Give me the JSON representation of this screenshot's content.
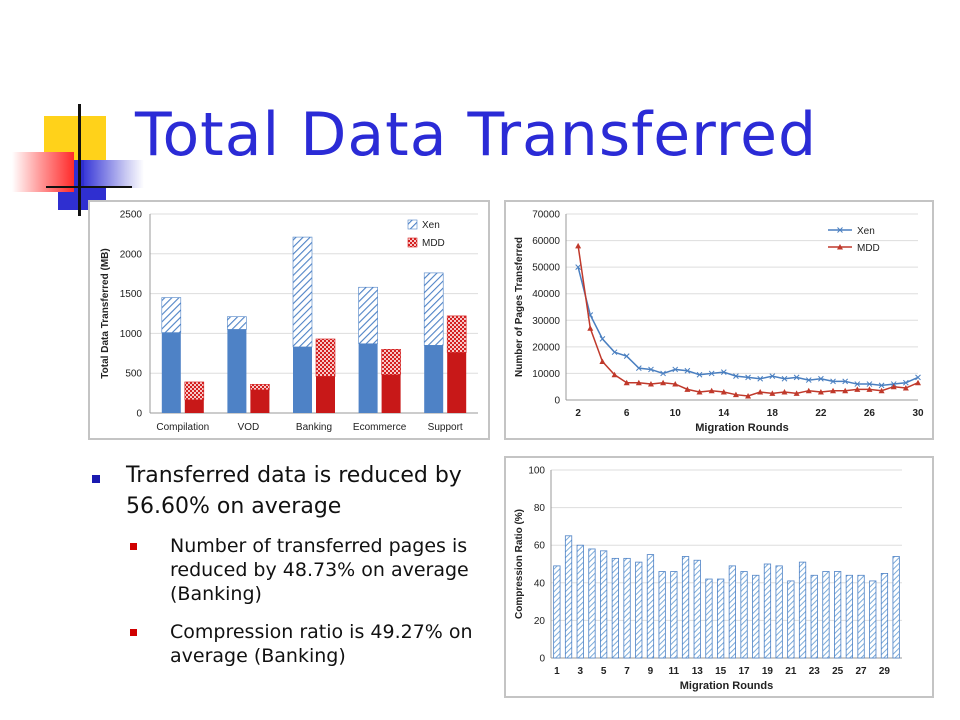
{
  "slide": {
    "title": "Total Data Transferred",
    "bullet_main": "Transferred data is reduced by 56.60% on average",
    "bullets_sub": [
      "Number of transferred pages is reduced by 48.73% on average (Banking)",
      "Compression ratio is 49.27% on average (Banking)"
    ]
  },
  "colors": {
    "title": "#2b2bd6",
    "xen_blue": "#4e82c6",
    "mdd_red": "#d42020",
    "xen_line": "#4a7fc0",
    "mdd_line": "#c0392b",
    "ratio_bar": "#7fb0dc"
  },
  "chart_data": [
    {
      "type": "bar",
      "ylabel": "Total Data Transferred (MB)",
      "xlabel": "",
      "ylim": [
        0,
        2500
      ],
      "yticks": [
        "0",
        "500",
        "1000",
        "1500",
        "2000",
        "2500"
      ],
      "categories": [
        "Compilation",
        "VOD",
        "Banking",
        "Ecommerce",
        "Support"
      ],
      "legend_position": "top-right",
      "series": [
        {
          "name": "Xen",
          "values": [
            1450,
            1210,
            2210,
            1580,
            1760
          ],
          "solid_part": [
            1010,
            1050,
            830,
            870,
            850
          ]
        },
        {
          "name": "MDD",
          "values": [
            390,
            360,
            930,
            800,
            1220
          ],
          "solid_part": [
            165,
            290,
            460,
            480,
            760
          ]
        }
      ]
    },
    {
      "type": "line",
      "ylabel": "Number of Pages Transferred",
      "xlabel": "Migration Rounds",
      "xlim": [
        1,
        30
      ],
      "ylim": [
        0,
        70000
      ],
      "xticks": [
        "2",
        "6",
        "10",
        "14",
        "18",
        "22",
        "26",
        "30"
      ],
      "yticks": [
        "0",
        "10000",
        "20000",
        "30000",
        "40000",
        "50000",
        "60000",
        "70000"
      ],
      "x": [
        2,
        3,
        4,
        5,
        6,
        7,
        8,
        9,
        10,
        11,
        12,
        13,
        14,
        15,
        16,
        17,
        18,
        19,
        20,
        21,
        22,
        23,
        24,
        25,
        26,
        27,
        28,
        29,
        30
      ],
      "legend_position": "top-right",
      "series": [
        {
          "name": "Xen",
          "values": [
            50000,
            32000,
            23000,
            18000,
            16500,
            12000,
            11500,
            10000,
            11500,
            11000,
            9500,
            10000,
            10500,
            9000,
            8500,
            8000,
            9000,
            8000,
            8500,
            7500,
            8000,
            7000,
            7000,
            6000,
            6000,
            5500,
            6000,
            6500,
            8500
          ]
        },
        {
          "name": "MDD",
          "values": [
            58000,
            27000,
            14500,
            9500,
            6500,
            6500,
            6000,
            6500,
            6000,
            4000,
            3000,
            3500,
            3000,
            2000,
            1500,
            3000,
            2500,
            3000,
            2500,
            3500,
            3000,
            3500,
            3500,
            4000,
            4000,
            3500,
            5000,
            4500,
            6500
          ]
        }
      ]
    },
    {
      "type": "bar",
      "ylabel": "Compression Ratio (%)",
      "xlabel": "Migration Rounds",
      "ylim": [
        0,
        100
      ],
      "yticks": [
        "0",
        "20",
        "40",
        "60",
        "80",
        "100"
      ],
      "xticks": [
        "1",
        "3",
        "5",
        "7",
        "9",
        "11",
        "13",
        "15",
        "17",
        "19",
        "21",
        "23",
        "25",
        "27",
        "29"
      ],
      "categories": [
        1,
        2,
        3,
        4,
        5,
        6,
        7,
        8,
        9,
        10,
        11,
        12,
        13,
        14,
        15,
        16,
        17,
        18,
        19,
        20,
        21,
        22,
        23,
        24,
        25,
        26,
        27,
        28,
        29,
        30
      ],
      "values": [
        49,
        65,
        60,
        58,
        57,
        53,
        53,
        51,
        55,
        46,
        46,
        54,
        52,
        42,
        42,
        49,
        46,
        44,
        50,
        49,
        41,
        51,
        44,
        46,
        46,
        44,
        44,
        41,
        45,
        54
      ]
    }
  ]
}
